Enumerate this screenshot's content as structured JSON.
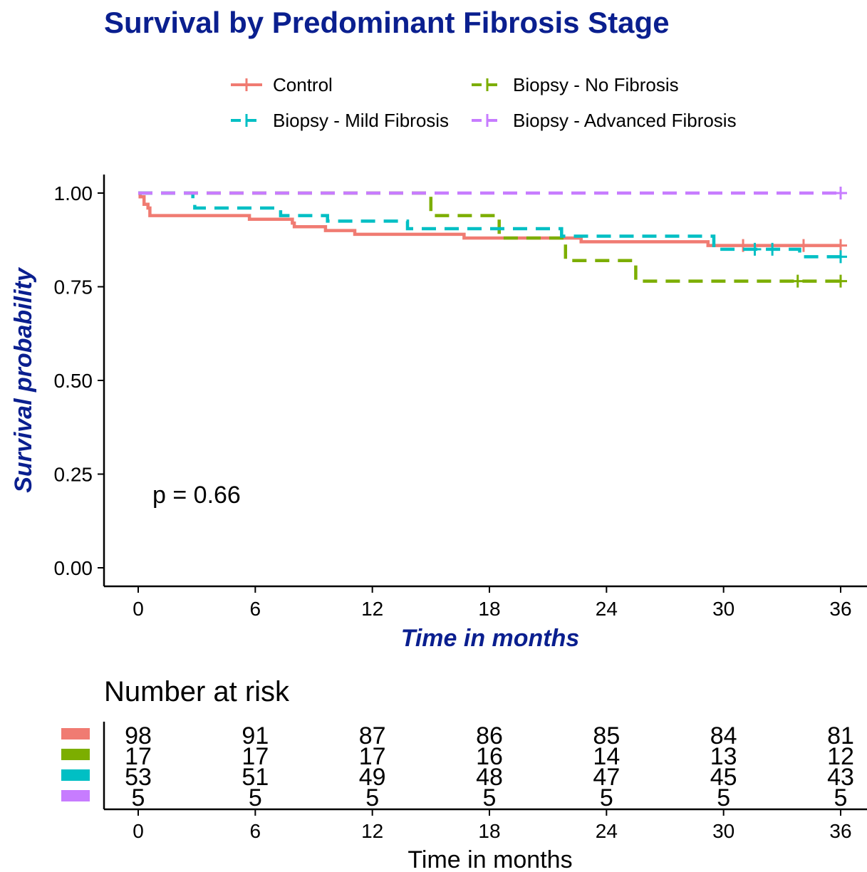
{
  "chart_data": {
    "type": "line",
    "subtype": "kaplan-meier",
    "title": "Survival by Predominant Fibrosis Stage",
    "xlabel": "Time in months",
    "ylabel": "Survival probability",
    "xlim": [
      0,
      36
    ],
    "ylim": [
      0,
      1
    ],
    "x_ticks": [
      "0",
      "6",
      "12",
      "18",
      "24",
      "30",
      "36"
    ],
    "y_ticks": [
      "0.00",
      "0.25",
      "0.50",
      "0.75",
      "1.00"
    ],
    "legend_position": "top",
    "annotation": "p = 0.66",
    "series": [
      {
        "name": "Control",
        "color": "#f07b72",
        "dash": "solid",
        "steps": [
          [
            0,
            1.0
          ],
          [
            0.1,
            0.99
          ],
          [
            0.3,
            0.97
          ],
          [
            0.5,
            0.96
          ],
          [
            0.6,
            0.94
          ],
          [
            5.7,
            0.93
          ],
          [
            7.9,
            0.92
          ],
          [
            8.0,
            0.91
          ],
          [
            9.6,
            0.9
          ],
          [
            11.1,
            0.89
          ],
          [
            16.7,
            0.88
          ],
          [
            22.7,
            0.87
          ],
          [
            29.2,
            0.86
          ],
          [
            36,
            0.86
          ]
        ],
        "censor": [
          [
            31.0,
            0.86
          ],
          [
            34.1,
            0.86
          ],
          [
            36,
            0.86
          ]
        ]
      },
      {
        "name": "Biopsy - No Fibrosis",
        "color": "#7cae00",
        "dash": "dashed",
        "steps": [
          [
            0,
            1.0
          ],
          [
            15.0,
            0.94
          ],
          [
            18.5,
            0.88
          ],
          [
            21.9,
            0.82
          ],
          [
            25.5,
            0.765
          ],
          [
            36,
            0.765
          ]
        ],
        "censor": [
          [
            33.8,
            0.765
          ],
          [
            36,
            0.765
          ]
        ]
      },
      {
        "name": "Biopsy - Mild Fibrosis",
        "color": "#00bfc4",
        "dash": "dashed",
        "steps": [
          [
            0,
            1.0
          ],
          [
            2.8,
            0.98
          ],
          [
            2.9,
            0.96
          ],
          [
            7.3,
            0.94
          ],
          [
            9.7,
            0.925
          ],
          [
            13.8,
            0.905
          ],
          [
            17.6,
            0.905
          ],
          [
            21.7,
            0.885
          ],
          [
            29.5,
            0.85
          ],
          [
            33.9,
            0.83
          ],
          [
            36,
            0.83
          ]
        ],
        "censor": [
          [
            31.6,
            0.85
          ],
          [
            32.5,
            0.85
          ],
          [
            36,
            0.83
          ]
        ]
      },
      {
        "name": "Biopsy - Advanced Fibrosis",
        "color": "#c77cff",
        "dash": "dashed",
        "steps": [
          [
            0,
            1.0
          ],
          [
            36,
            1.0
          ]
        ],
        "censor": [
          [
            36,
            1.0
          ]
        ]
      }
    ],
    "risk_table": {
      "title": "Number at risk",
      "xlabel": "Time in months",
      "times": [
        0,
        6,
        12,
        18,
        24,
        30,
        36
      ],
      "rows": [
        {
          "name": "Control",
          "color": "#f07b72",
          "values": [
            98,
            91,
            87,
            86,
            85,
            84,
            81
          ]
        },
        {
          "name": "Biopsy - No Fibrosis",
          "color": "#7cae00",
          "values": [
            17,
            17,
            17,
            16,
            14,
            13,
            12
          ]
        },
        {
          "name": "Biopsy - Mild Fibrosis",
          "color": "#00bfc4",
          "values": [
            53,
            51,
            49,
            48,
            47,
            45,
            43
          ]
        },
        {
          "name": "Biopsy - Advanced Fibrosis",
          "color": "#c77cff",
          "values": [
            5,
            5,
            5,
            5,
            5,
            5,
            5
          ]
        }
      ]
    }
  }
}
